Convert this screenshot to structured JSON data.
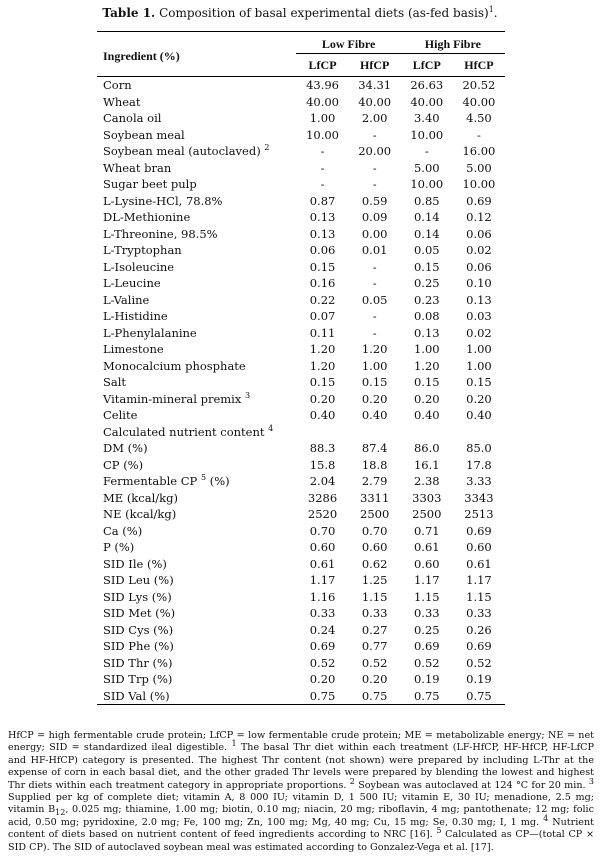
{
  "caption": {
    "label": "Table 1.",
    "text": "Composition of basal experimental diets (as-fed basis)",
    "sup": "1",
    "end": "."
  },
  "header": {
    "ingredient": "Ingredient (%)",
    "group_low": "Low Fibre",
    "group_high": "High Fibre",
    "cols": [
      "LfCP",
      "HfCP",
      "LfCP",
      "HfCP"
    ]
  },
  "rows": [
    {
      "label": "Corn",
      "sup": "",
      "v": [
        "43.96",
        "34.31",
        "26.63",
        "20.52"
      ]
    },
    {
      "label": "Wheat",
      "sup": "",
      "v": [
        "40.00",
        "40.00",
        "40.00",
        "40.00"
      ]
    },
    {
      "label": "Canola oil",
      "sup": "",
      "v": [
        "1.00",
        "2.00",
        "3.40",
        "4.50"
      ]
    },
    {
      "label": "Soybean meal",
      "sup": "",
      "v": [
        "10.00",
        "-",
        "10.00",
        "-"
      ]
    },
    {
      "label": "Soybean meal (autoclaved)",
      "sup": "2",
      "v": [
        "-",
        "20.00",
        "-",
        "16.00"
      ]
    },
    {
      "label": "Wheat bran",
      "sup": "",
      "v": [
        "-",
        "-",
        "5.00",
        "5.00"
      ]
    },
    {
      "label": "Sugar beet pulp",
      "sup": "",
      "v": [
        "-",
        "-",
        "10.00",
        "10.00"
      ]
    },
    {
      "label": "L-Lysine-HCl, 78.8%",
      "sup": "",
      "v": [
        "0.87",
        "0.59",
        "0.85",
        "0.69"
      ]
    },
    {
      "label": "DL-Methionine",
      "sup": "",
      "v": [
        "0.13",
        "0.09",
        "0.14",
        "0.12"
      ]
    },
    {
      "label": "L-Threonine, 98.5%",
      "sup": "",
      "v": [
        "0.13",
        "0.00",
        "0.14",
        "0.06"
      ]
    },
    {
      "label": "L-Tryptophan",
      "sup": "",
      "v": [
        "0.06",
        "0.01",
        "0.05",
        "0.02"
      ]
    },
    {
      "label": "L-Isoleucine",
      "sup": "",
      "v": [
        "0.15",
        "-",
        "0.15",
        "0.06"
      ]
    },
    {
      "label": "L-Leucine",
      "sup": "",
      "v": [
        "0.16",
        "-",
        "0.25",
        "0.10"
      ]
    },
    {
      "label": "L-Valine",
      "sup": "",
      "v": [
        "0.22",
        "0.05",
        "0.23",
        "0.13"
      ]
    },
    {
      "label": "L-Histidine",
      "sup": "",
      "v": [
        "0.07",
        "-",
        "0.08",
        "0.03"
      ]
    },
    {
      "label": "L-Phenylalanine",
      "sup": "",
      "v": [
        "0.11",
        "-",
        "0.13",
        "0.02"
      ]
    },
    {
      "label": "Limestone",
      "sup": "",
      "v": [
        "1.20",
        "1.20",
        "1.00",
        "1.00"
      ]
    },
    {
      "label": "Monocalcium phosphate",
      "sup": "",
      "v": [
        "1.20",
        "1.00",
        "1.20",
        "1.00"
      ]
    },
    {
      "label": "Salt",
      "sup": "",
      "v": [
        "0.15",
        "0.15",
        "0.15",
        "0.15"
      ]
    },
    {
      "label": "Vitamin-mineral premix",
      "sup": "3",
      "v": [
        "0.20",
        "0.20",
        "0.20",
        "0.20"
      ]
    },
    {
      "label": "Celite",
      "sup": "",
      "v": [
        "0.40",
        "0.40",
        "0.40",
        "0.40"
      ]
    },
    {
      "label": "Calculated nutrient content",
      "sup": "4",
      "v": [
        "",
        "",
        "",
        ""
      ]
    },
    {
      "label": "DM (%)",
      "sup": "",
      "v": [
        "88.3",
        "87.4",
        "86.0",
        "85.0"
      ]
    },
    {
      "label": "CP (%)",
      "sup": "",
      "v": [
        "15.8",
        "18.8",
        "16.1",
        "17.8"
      ]
    },
    {
      "label": "Fermentable CP",
      "sup": "5",
      "suffix": " (%)",
      "v": [
        "2.04",
        "2.79",
        "2.38",
        "3.33"
      ]
    },
    {
      "label": "ME (kcal/kg)",
      "sup": "",
      "v": [
        "3286",
        "3311",
        "3303",
        "3343"
      ]
    },
    {
      "label": "NE (kcal/kg)",
      "sup": "",
      "v": [
        "2520",
        "2500",
        "2500",
        "2513"
      ]
    },
    {
      "label": "Ca (%)",
      "sup": "",
      "v": [
        "0.70",
        "0.70",
        "0.71",
        "0.69"
      ]
    },
    {
      "label": "P (%)",
      "sup": "",
      "v": [
        "0.60",
        "0.60",
        "0.61",
        "0.60"
      ]
    },
    {
      "label": "SID Ile (%)",
      "sup": "",
      "v": [
        "0.61",
        "0.62",
        "0.60",
        "0.61"
      ]
    },
    {
      "label": "SID Leu (%)",
      "sup": "",
      "v": [
        "1.17",
        "1.25",
        "1.17",
        "1.17"
      ]
    },
    {
      "label": "SID Lys (%)",
      "sup": "",
      "v": [
        "1.16",
        "1.15",
        "1.15",
        "1.15"
      ]
    },
    {
      "label": "SID Met (%)",
      "sup": "",
      "v": [
        "0.33",
        "0.33",
        "0.33",
        "0.33"
      ]
    },
    {
      "label": "SID Cys (%)",
      "sup": "",
      "v": [
        "0.24",
        "0.27",
        "0.25",
        "0.26"
      ]
    },
    {
      "label": "SID Phe (%)",
      "sup": "",
      "v": [
        "0.69",
        "0.77",
        "0.69",
        "0.69"
      ]
    },
    {
      "label": "SID Thr (%)",
      "sup": "",
      "v": [
        "0.52",
        "0.52",
        "0.52",
        "0.52"
      ]
    },
    {
      "label": "SID Trp (%)",
      "sup": "",
      "v": [
        "0.20",
        "0.20",
        "0.19",
        "0.19"
      ]
    },
    {
      "label": "SID Val (%)",
      "sup": "",
      "v": [
        "0.75",
        "0.75",
        "0.75",
        "0.75"
      ]
    }
  ],
  "notes": {
    "abbrev": "HfCP = high fermentable crude protein; LfCP = low fermentable crude protein; ME = metabolizable energy; NE = net energy; SID = standardized ileal digestible.",
    "n1": "The basal Thr diet within each treatment (LF-HfCP, HF-HfCP, HF-LfCP and HF-HfCP) category is presented. The highest Thr content (not shown) were prepared by including L-Thr at the expense of corn in each basal diet, and the other graded Thr levels were prepared by blending the lowest and highest Thr diets within each treatment category in appropriate proportions.",
    "n2": "Soybean was autoclaved at 124 °C for 20 min.",
    "n3a": "Supplied per kg of complete diet; vitamin A, 8 000 IU; vitamin D, 1 500 IU; vitamin E, 30 IU; menadione, 2.5 mg; vitamin B",
    "n3sub": "12",
    "n3b": ", 0.025 mg; thiamine, 1.00 mg; biotin, 0.10 mg; niacin, 20 mg; riboflavin, 4 mg; pantothenate; 12 mg; folic acid, 0.50 mg; pyridoxine, 2.0 mg; Fe, 100 mg; Zn, 100 mg; Mg, 40 mg; Cu, 15 mg; Se, 0.30 mg; I, 1 mg.",
    "n4": "Nutrient content of diets based on nutrient content of feed ingredients according to NRC [16].",
    "n5": "Calculated as CP—(total CP × SID CP). The SID of autoclaved soybean meal was estimated according to Gonzalez-Vega et al. [17]."
  }
}
